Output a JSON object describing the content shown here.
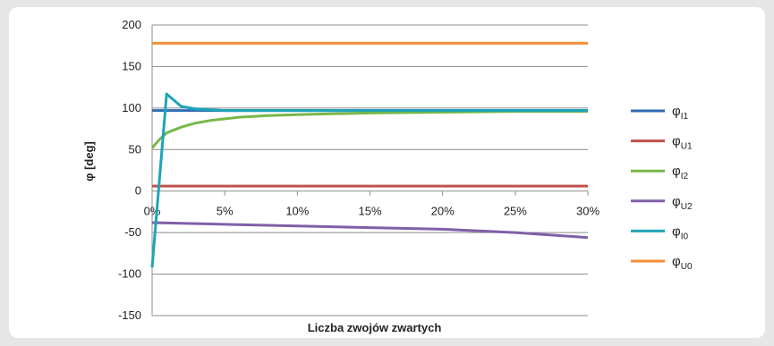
{
  "chart_data": {
    "type": "line",
    "xlabel": "Liczba zwojów zwartych",
    "ylabel": "φ [deg]",
    "xlim": [
      0,
      30
    ],
    "ylim": [
      -150,
      200
    ],
    "x_ticks": [
      "0%",
      "5%",
      "10%",
      "15%",
      "20%",
      "25%",
      "30%"
    ],
    "y_ticks": [
      "200",
      "150",
      "100",
      "50",
      "0",
      "-50",
      "-100",
      "-150"
    ],
    "grid": "horizontal",
    "legend_position": "right",
    "series": [
      {
        "name": "φI1",
        "label_main": "φ",
        "label_sub": "I1",
        "color": "#2f6db5",
        "x": [
          0,
          30
        ],
        "y": [
          97,
          97
        ]
      },
      {
        "name": "φU1",
        "label_main": "φ",
        "label_sub": "U1",
        "color": "#c0504d",
        "x": [
          0,
          30
        ],
        "y": [
          6,
          6
        ]
      },
      {
        "name": "φI2",
        "label_main": "φ",
        "label_sub": "I2",
        "color": "#77b84a",
        "x": [
          0,
          0.5,
          1,
          2,
          3,
          4,
          5,
          6,
          8,
          10,
          12,
          15,
          20,
          25,
          30
        ],
        "y": [
          52,
          62,
          70,
          77,
          82,
          85,
          87,
          89,
          91,
          92,
          93,
          94,
          95,
          96,
          96
        ]
      },
      {
        "name": "φU2",
        "label_main": "φ",
        "label_sub": "U2",
        "color": "#7f60a8",
        "x": [
          0,
          5,
          10,
          15,
          20,
          25,
          30
        ],
        "y": [
          -38,
          -40,
          -42,
          -44,
          -46,
          -50,
          -56
        ]
      },
      {
        "name": "φI0",
        "label_main": "φ",
        "label_sub": "I0",
        "color": "#1ea4b8",
        "x": [
          0,
          1,
          2,
          3,
          4,
          5,
          10,
          20,
          30
        ],
        "y": [
          -92,
          117,
          102,
          99,
          98,
          97,
          97,
          97,
          97
        ]
      },
      {
        "name": "φU0",
        "label_main": "φ",
        "label_sub": "U0",
        "color": "#f28e36",
        "x": [
          0,
          30
        ],
        "y": [
          178,
          178
        ]
      }
    ]
  }
}
